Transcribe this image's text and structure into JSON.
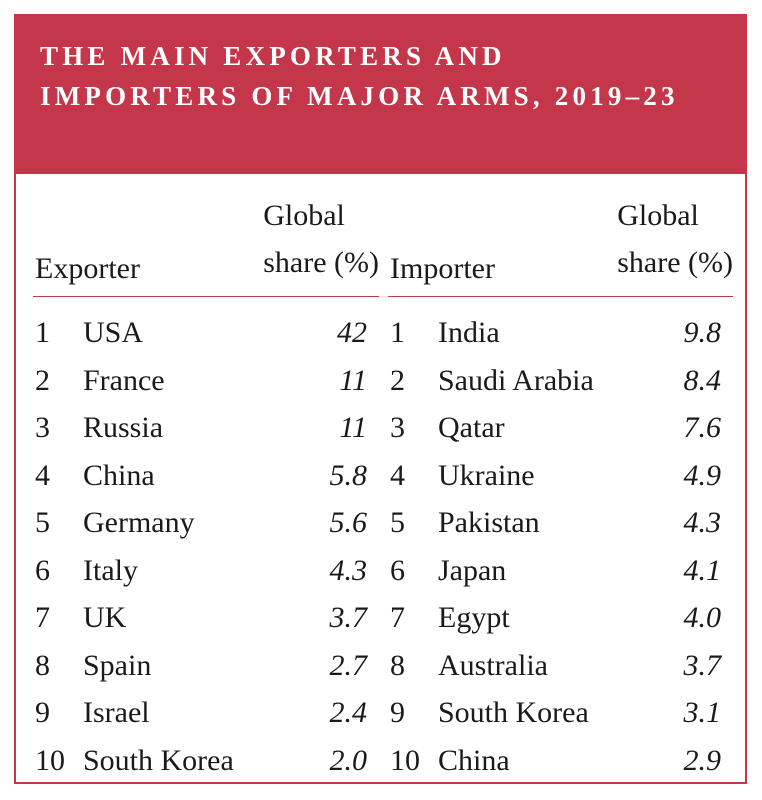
{
  "title": "THE MAIN EXPORTERS AND IMPORTERS OF MAJOR ARMS, 2019–23",
  "colors": {
    "accent": "#c4364a",
    "text": "#1a1a1a",
    "background": "#ffffff"
  },
  "exporters": {
    "col_name": "Exporter",
    "col_share_line1": "Global",
    "col_share_line2": "share (%)",
    "rows": [
      {
        "rank": "1",
        "name": "USA",
        "value": "42"
      },
      {
        "rank": "2",
        "name": "France",
        "value": "11"
      },
      {
        "rank": "3",
        "name": "Russia",
        "value": "11"
      },
      {
        "rank": "4",
        "name": "China",
        "value": "5.8"
      },
      {
        "rank": "5",
        "name": "Germany",
        "value": "5.6"
      },
      {
        "rank": "6",
        "name": "Italy",
        "value": "4.3"
      },
      {
        "rank": "7",
        "name": "UK",
        "value": "3.7"
      },
      {
        "rank": "8",
        "name": "Spain",
        "value": "2.7"
      },
      {
        "rank": "9",
        "name": "Israel",
        "value": "2.4"
      },
      {
        "rank": "10",
        "name": "South Korea",
        "value": "2.0"
      }
    ]
  },
  "importers": {
    "col_name": "Importer",
    "col_share_line1": "Global",
    "col_share_line2": "share (%)",
    "rows": [
      {
        "rank": "1",
        "name": "India",
        "value": "9.8"
      },
      {
        "rank": "2",
        "name": "Saudi Arabia",
        "value": "8.4"
      },
      {
        "rank": "3",
        "name": "Qatar",
        "value": "7.6"
      },
      {
        "rank": "4",
        "name": "Ukraine",
        "value": "4.9"
      },
      {
        "rank": "5",
        "name": "Pakistan",
        "value": "4.3"
      },
      {
        "rank": "6",
        "name": "Japan",
        "value": "4.1"
      },
      {
        "rank": "7",
        "name": "Egypt",
        "value": "4.0"
      },
      {
        "rank": "8",
        "name": "Australia",
        "value": "3.7"
      },
      {
        "rank": "9",
        "name": "South Korea",
        "value": "3.1"
      },
      {
        "rank": "10",
        "name": "China",
        "value": "2.9"
      }
    ]
  },
  "chart_data": {
    "type": "table",
    "title": "THE MAIN EXPORTERS AND IMPORTERS OF MAJOR ARMS, 2019–23",
    "tables": [
      {
        "columns": [
          "",
          "Exporter",
          "Global share (%)"
        ],
        "rows": [
          [
            1,
            "USA",
            42
          ],
          [
            2,
            "France",
            11
          ],
          [
            3,
            "Russia",
            11
          ],
          [
            4,
            "China",
            5.8
          ],
          [
            5,
            "Germany",
            5.6
          ],
          [
            6,
            "Italy",
            4.3
          ],
          [
            7,
            "UK",
            3.7
          ],
          [
            8,
            "Spain",
            2.7
          ],
          [
            9,
            "Israel",
            2.4
          ],
          [
            10,
            "South Korea",
            2.0
          ]
        ]
      },
      {
        "columns": [
          "",
          "Importer",
          "Global share (%)"
        ],
        "rows": [
          [
            1,
            "India",
            9.8
          ],
          [
            2,
            "Saudi Arabia",
            8.4
          ],
          [
            3,
            "Qatar",
            7.6
          ],
          [
            4,
            "Ukraine",
            4.9
          ],
          [
            5,
            "Pakistan",
            4.3
          ],
          [
            6,
            "Japan",
            4.1
          ],
          [
            7,
            "Egypt",
            4.0
          ],
          [
            8,
            "Australia",
            3.7
          ],
          [
            9,
            "South Korea",
            3.1
          ],
          [
            10,
            "China",
            2.9
          ]
        ]
      }
    ]
  }
}
